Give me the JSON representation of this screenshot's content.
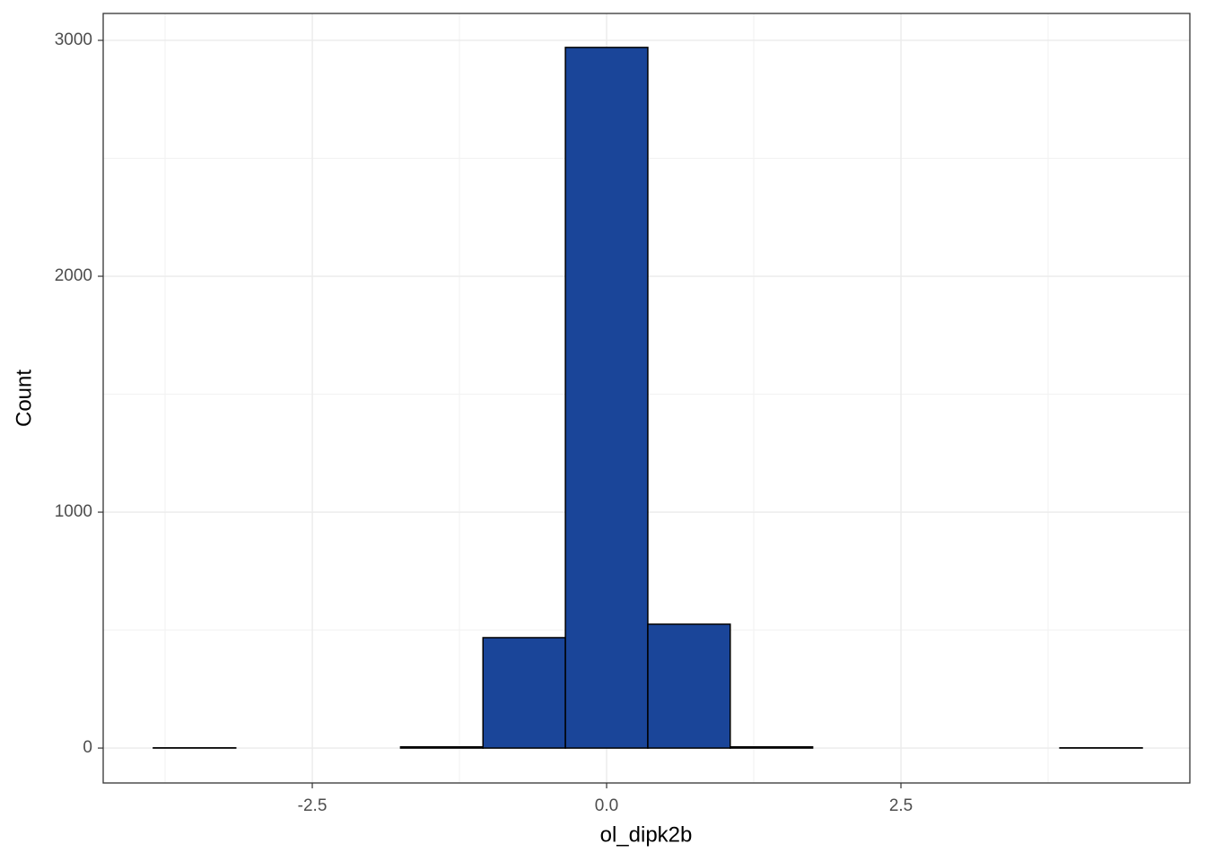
{
  "chart_data": {
    "type": "histogram",
    "x_label": "ol_dipk2b",
    "y_label": "Count",
    "bins": [
      -3.85,
      -3.15,
      -2.45,
      -1.75,
      -1.05,
      -0.35,
      0.35,
      1.05,
      1.75,
      2.45,
      3.15,
      3.85,
      4.55
    ],
    "values": [
      1,
      0,
      0,
      5,
      468,
      2970,
      525,
      5,
      0,
      0,
      0,
      1
    ],
    "color": "#1a4599",
    "xlim": [
      -4.276,
      4.954
    ],
    "ylim": [
      -148,
      3114
    ],
    "xticks": [
      -2.5,
      {
        "value": 0,
        "label": "0.0"
      },
      2.5
    ],
    "yticks": [
      0,
      1000,
      2000,
      3000
    ],
    "grid": true
  }
}
